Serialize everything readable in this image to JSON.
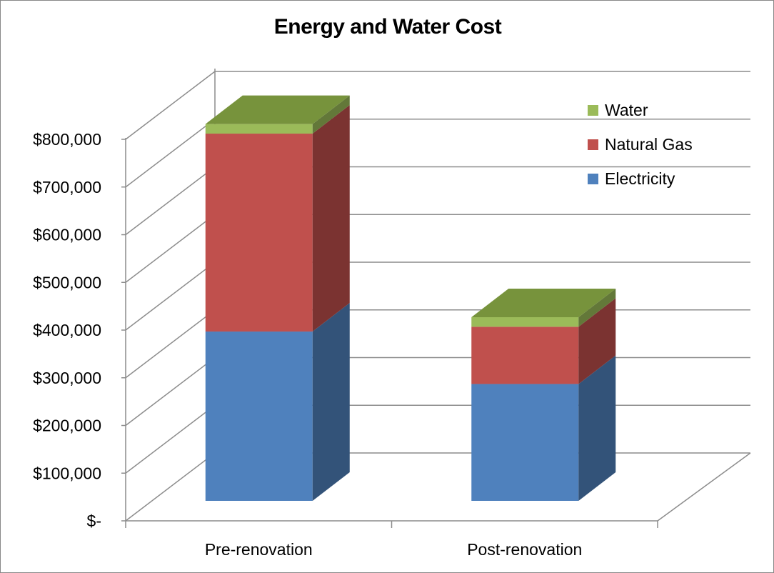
{
  "chart_data": {
    "type": "bar",
    "stacked": true,
    "three_d": true,
    "title": "Energy and Water Cost",
    "xlabel": "",
    "ylabel": "",
    "categories": [
      "Pre-renovation",
      "Post-renovation"
    ],
    "series": [
      {
        "name": "Electricity",
        "values": [
          355000,
          245000
        ],
        "color": "#4F81BD"
      },
      {
        "name": "Natural Gas",
        "values": [
          415000,
          120000
        ],
        "color": "#C0504D"
      },
      {
        "name": "Water",
        "values": [
          20000,
          20000
        ],
        "color": "#9BBB59"
      }
    ],
    "ylim": [
      0,
      800000
    ],
    "yticks": [
      0,
      100000,
      200000,
      300000,
      400000,
      500000,
      600000,
      700000,
      800000
    ],
    "ytick_labels": [
      "$-",
      "$100,000",
      "$200,000",
      "$300,000",
      "$400,000",
      "$500,000",
      "$600,000",
      "$700,000",
      "$800,000"
    ],
    "legend": {
      "position": "top-right",
      "order": [
        "Water",
        "Natural Gas",
        "Electricity"
      ]
    },
    "grid": true
  }
}
